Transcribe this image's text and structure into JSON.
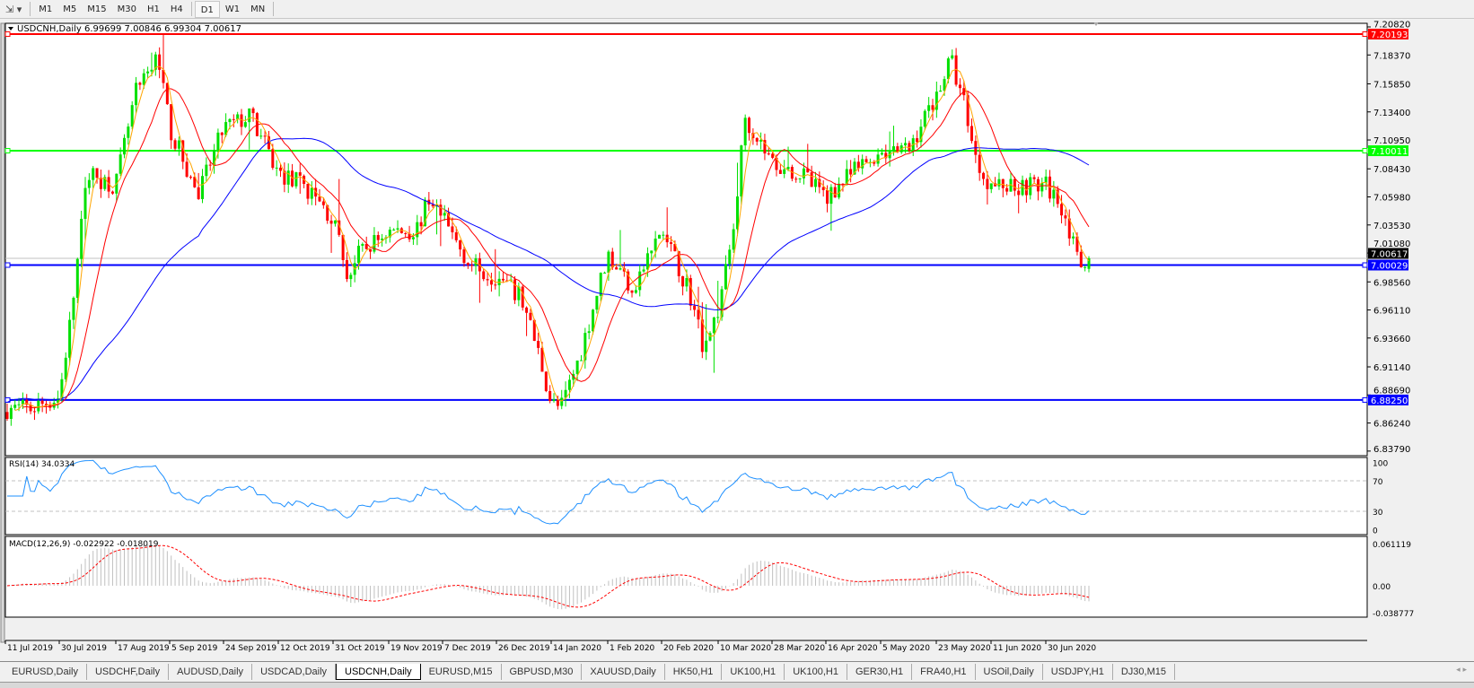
{
  "toolbar": {
    "timeframes": [
      "M1",
      "M5",
      "M15",
      "M30",
      "H1",
      "H4",
      "D1",
      "W1",
      "MN"
    ],
    "active": "D1"
  },
  "chart": {
    "header": "USDCNH,Daily  6.99699 7.00846 6.99304 7.00617",
    "symbol": "USDCNH",
    "period": "Daily",
    "ohlc": {
      "open": 6.99699,
      "high": 7.00846,
      "low": 6.99304,
      "close": 7.00617
    },
    "price_axis_ticks": [
      "7.20820",
      "7.18370",
      "7.15850",
      "7.13400",
      "7.10950",
      "7.08430",
      "7.05980",
      "7.03530",
      "7.01080",
      "6.98560",
      "6.96110",
      "6.93660",
      "6.91140",
      "6.88690",
      "6.86240",
      "6.83790"
    ],
    "price_range": [
      6.8379,
      7.2082
    ],
    "levels": [
      {
        "label": "7.20193",
        "price": 7.20193,
        "color": "#ff0000"
      },
      {
        "label": "7.10011",
        "price": 7.10011,
        "color": "#00ff00"
      },
      {
        "label": "7.00029",
        "price": 7.00029,
        "color": "#0000ff"
      },
      {
        "label": "6.88250",
        "price": 6.8825,
        "color": "#0000ff"
      }
    ],
    "current_price": {
      "label": "7.00617",
      "price": 7.00617
    },
    "colors": {
      "bull": "#00e000",
      "bear": "#ff0000",
      "ma_fast": "#ffa500",
      "ma_mid": "#ff0000",
      "ma_slow": "#0000ff",
      "rsi": "#1e90ff",
      "macd_signal": "#ff0000",
      "macd_hist": "#c0c0c0"
    },
    "date_labels": [
      "11 Jul 2019",
      "30 Jul 2019",
      "17 Aug 2019",
      "5 Sep 2019",
      "24 Sep 2019",
      "12 Oct 2019",
      "31 Oct 2019",
      "19 Nov 2019",
      "7 Dec 2019",
      "26 Dec 2019",
      "14 Jan 2020",
      "1 Feb 2020",
      "20 Feb 2020",
      "10 Mar 2020",
      "28 Mar 2020",
      "16 Apr 2020",
      "5 May 2020",
      "23 May 2020",
      "11 Jun 2020",
      "30 Jun 2020"
    ]
  },
  "chart_data": {
    "type": "candlestick",
    "approx_closes": [
      [
        "2019-07-11",
        6.875
      ],
      [
        "2019-07-20",
        6.875
      ],
      [
        "2019-07-30",
        6.885
      ],
      [
        "2019-08-03",
        6.96
      ],
      [
        "2019-08-08",
        7.08
      ],
      [
        "2019-08-17",
        7.07
      ],
      [
        "2019-08-24",
        7.15
      ],
      [
        "2019-08-27",
        7.16
      ],
      [
        "2019-09-01",
        7.185
      ],
      [
        "2019-09-05",
        7.12
      ],
      [
        "2019-09-15",
        7.06
      ],
      [
        "2019-09-24",
        7.12
      ],
      [
        "2019-10-03",
        7.13
      ],
      [
        "2019-10-12",
        7.08
      ],
      [
        "2019-10-21",
        7.07
      ],
      [
        "2019-10-31",
        7.04
      ],
      [
        "2019-11-05",
        6.99
      ],
      [
        "2019-11-09",
        7.01
      ],
      [
        "2019-11-19",
        7.03
      ],
      [
        "2019-11-28",
        7.03
      ],
      [
        "2019-12-03",
        7.06
      ],
      [
        "2019-12-07",
        7.04
      ],
      [
        "2019-12-17",
        7.0
      ],
      [
        "2019-12-26",
        6.99
      ],
      [
        "2020-01-04",
        6.97
      ],
      [
        "2020-01-10",
        6.92
      ],
      [
        "2020-01-14",
        6.88
      ],
      [
        "2020-01-17",
        6.875
      ],
      [
        "2020-01-23",
        6.92
      ],
      [
        "2020-02-01",
        7.01
      ],
      [
        "2020-02-10",
        6.98
      ],
      [
        "2020-02-20",
        7.03
      ],
      [
        "2020-02-29",
        6.98
      ],
      [
        "2020-03-05",
        6.93
      ],
      [
        "2020-03-10",
        6.96
      ],
      [
        "2020-03-15",
        7.03
      ],
      [
        "2020-03-19",
        7.13
      ],
      [
        "2020-03-28",
        7.09
      ],
      [
        "2020-04-07",
        7.08
      ],
      [
        "2020-04-16",
        7.06
      ],
      [
        "2020-04-25",
        7.08
      ],
      [
        "2020-05-05",
        7.1
      ],
      [
        "2020-05-14",
        7.1
      ],
      [
        "2020-05-23",
        7.15
      ],
      [
        "2020-05-28",
        7.18
      ],
      [
        "2020-06-02",
        7.14
      ],
      [
        "2020-06-06",
        7.09
      ],
      [
        "2020-06-11",
        7.07
      ],
      [
        "2020-06-20",
        7.07
      ],
      [
        "2020-06-30",
        7.07
      ],
      [
        "2020-07-05",
        7.05
      ],
      [
        "2020-07-09",
        7.0
      ],
      [
        "2020-07-12",
        7.00617
      ]
    ]
  },
  "rsi": {
    "label": "RSI(14) 34.0334",
    "ticks": [
      "100",
      "70",
      "30",
      "0"
    ],
    "levels": [
      70,
      30
    ]
  },
  "macd": {
    "label": "MACD(12,26,9) -0.022922 -0.018019",
    "ticks": [
      "0.061119",
      "0.00",
      "-0.038777"
    ]
  },
  "tabs": {
    "items": [
      "EURUSD,Daily",
      "USDCHF,Daily",
      "AUDUSD,Daily",
      "USDCAD,Daily",
      "USDCNH,Daily",
      "EURUSD,M15",
      "GBPUSD,M30",
      "XAUUSD,Daily",
      "HK50,H1",
      "UK100,H1",
      "UK100,H1",
      "GER30,H1",
      "FRA40,H1",
      "USOil,Daily",
      "USDJPY,H1",
      "DJ30,M15"
    ],
    "active": 4,
    "scroll": "◂ ▸"
  }
}
